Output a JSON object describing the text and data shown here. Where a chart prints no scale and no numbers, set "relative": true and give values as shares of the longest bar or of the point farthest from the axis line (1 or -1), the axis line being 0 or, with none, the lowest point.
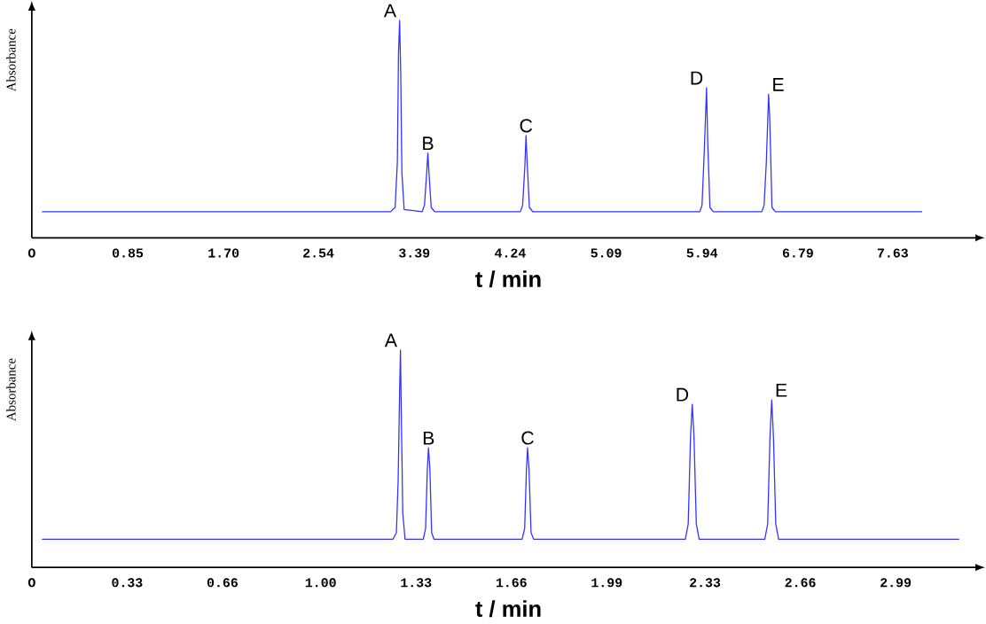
{
  "chart_data": [
    {
      "type": "line",
      "color": "#3333ff",
      "relative": true,
      "xlabel": "t / min",
      "ylabel": "Absorbance",
      "xlim": [
        0,
        8.45
      ],
      "xticks": [
        {
          "value": 0,
          "label": "O"
        },
        0.85,
        {
          "value": 1.7,
          "label": "1.70"
        },
        2.54,
        3.39,
        4.24,
        5.09,
        5.94,
        6.79,
        7.63
      ],
      "x": [
        0.09,
        3.18,
        3.22,
        3.24,
        3.25,
        3.26,
        3.27,
        3.28,
        3.3,
        3.46,
        3.48,
        3.5,
        3.51,
        3.52,
        3.54,
        3.57,
        4.33,
        4.35,
        4.37,
        4.38,
        4.39,
        4.41,
        4.44,
        5.92,
        5.94,
        5.96,
        5.98,
        5.99,
        6.01,
        6.04,
        6.47,
        6.49,
        6.51,
        6.53,
        6.54,
        6.56,
        6.59,
        7.89
      ],
      "values": [
        0.12,
        0.12,
        0.14,
        0.35,
        0.85,
        1.0,
        0.75,
        0.3,
        0.13,
        0.12,
        0.15,
        0.3,
        0.39,
        0.3,
        0.14,
        0.12,
        0.12,
        0.15,
        0.33,
        0.47,
        0.35,
        0.14,
        0.12,
        0.12,
        0.15,
        0.4,
        0.69,
        0.45,
        0.14,
        0.12,
        0.12,
        0.15,
        0.35,
        0.66,
        0.55,
        0.14,
        0.12,
        0.12
      ],
      "annotations": [
        {
          "text": "A",
          "x": 3.26,
          "y": 1.0
        },
        {
          "text": "B",
          "x": 3.51,
          "y": 0.39
        },
        {
          "text": "C",
          "x": 4.38,
          "y": 0.47
        },
        {
          "text": "D",
          "x": 5.98,
          "y": 0.69
        },
        {
          "text": "E",
          "x": 6.53,
          "y": 0.66
        }
      ]
    },
    {
      "type": "line",
      "color": "#3333ff",
      "relative": true,
      "xlabel": "t / min",
      "ylabel": "Absorbance",
      "xlim": [
        0,
        3.3
      ],
      "xticks": [
        {
          "value": 0,
          "label": "O"
        },
        0.33,
        0.66,
        {
          "value": 1.0,
          "label": "1.00"
        },
        1.33,
        1.66,
        1.99,
        2.33,
        2.66,
        2.99
      ],
      "x": [
        0.035,
        1.25,
        1.262,
        1.268,
        1.273,
        1.276,
        1.279,
        1.284,
        1.292,
        1.355,
        1.363,
        1.369,
        1.373,
        1.378,
        1.384,
        1.392,
        1.697,
        1.706,
        1.712,
        1.716,
        1.721,
        1.728,
        1.737,
        2.262,
        2.272,
        2.28,
        2.286,
        2.292,
        2.3,
        2.31,
        2.537,
        2.547,
        2.555,
        2.561,
        2.567,
        2.575,
        2.585,
        3.21
      ],
      "values": [
        0.13,
        0.13,
        0.16,
        0.4,
        0.8,
        1.0,
        0.7,
        0.25,
        0.13,
        0.13,
        0.18,
        0.45,
        0.55,
        0.45,
        0.16,
        0.13,
        0.13,
        0.18,
        0.45,
        0.55,
        0.45,
        0.16,
        0.13,
        0.13,
        0.2,
        0.6,
        0.75,
        0.6,
        0.2,
        0.13,
        0.13,
        0.2,
        0.6,
        0.77,
        0.6,
        0.2,
        0.13,
        0.13
      ],
      "annotations": [
        {
          "text": "A",
          "x": 1.276,
          "y": 1.0
        },
        {
          "text": "B",
          "x": 1.373,
          "y": 0.55
        },
        {
          "text": "C",
          "x": 1.716,
          "y": 0.55
        },
        {
          "text": "D",
          "x": 2.286,
          "y": 0.75
        },
        {
          "text": "E",
          "x": 2.561,
          "y": 0.77
        }
      ]
    }
  ]
}
